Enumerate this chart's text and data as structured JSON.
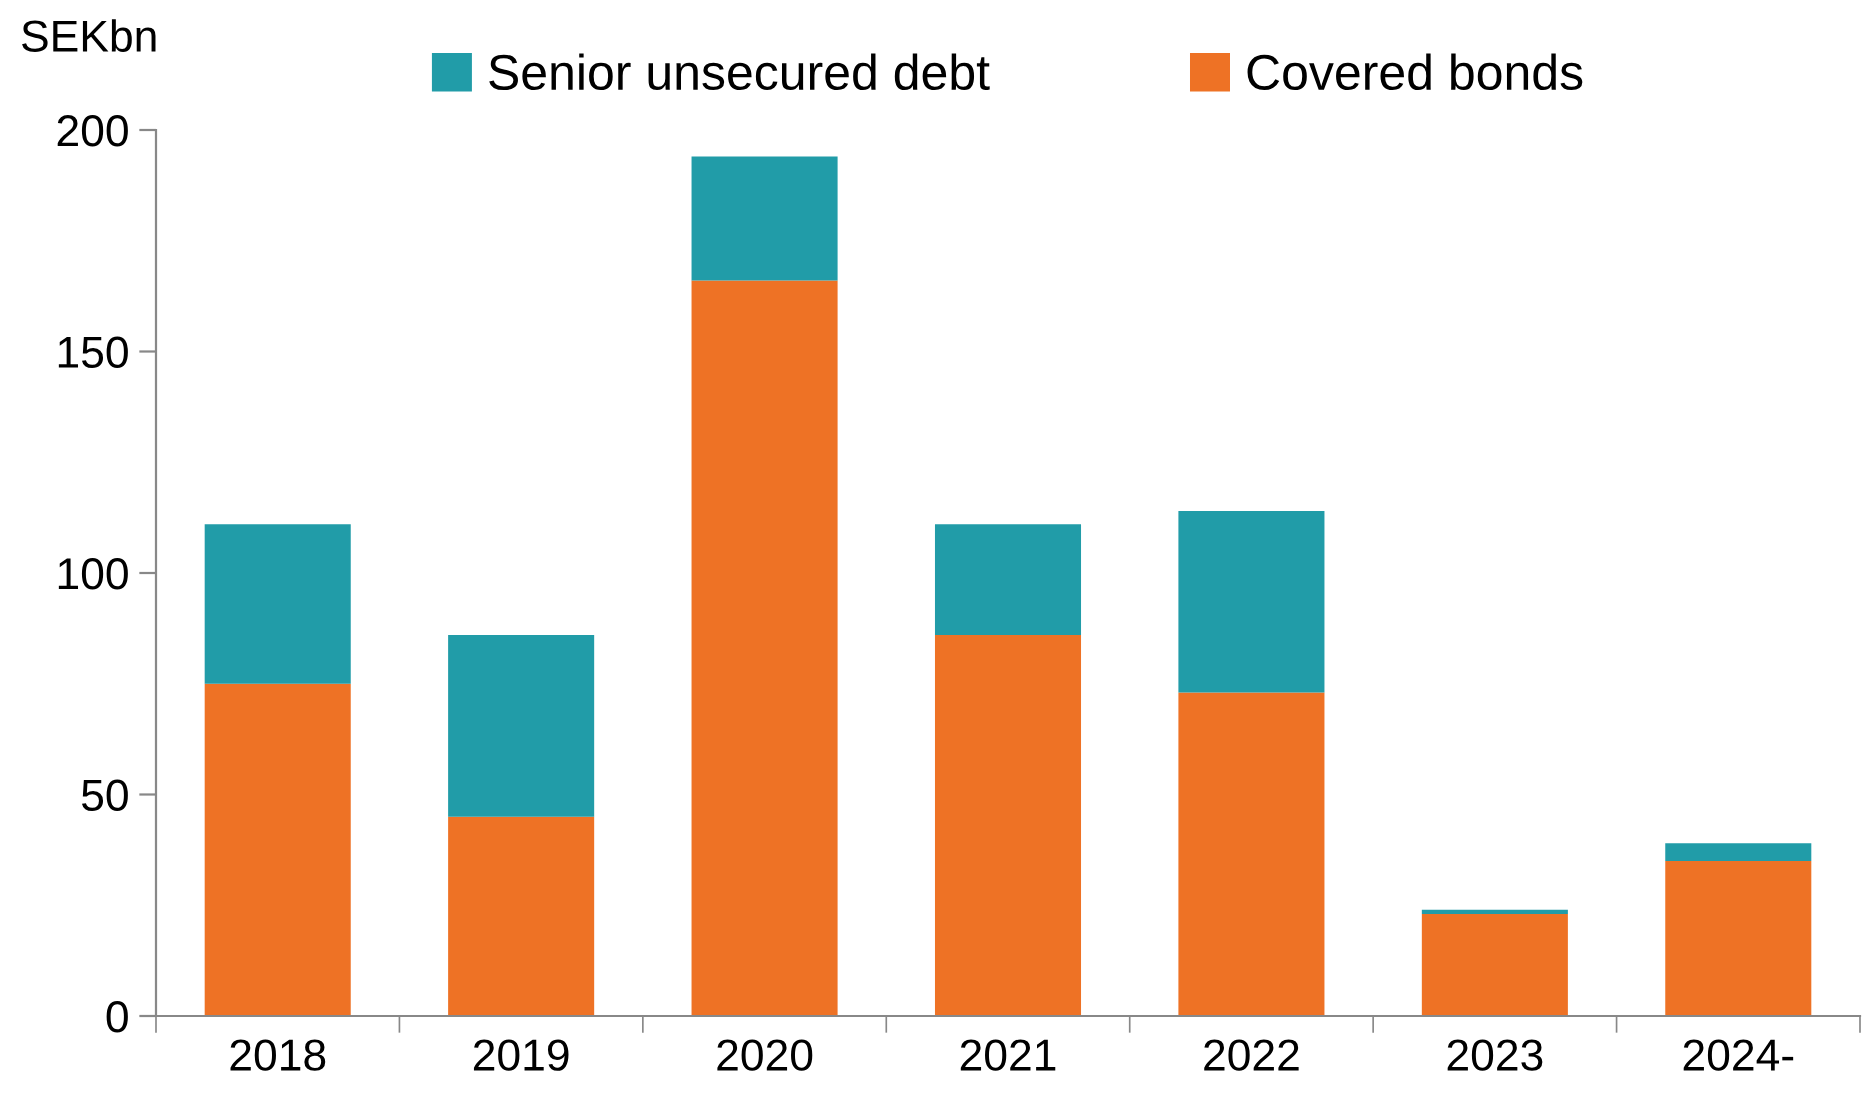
{
  "chart_data": {
    "type": "bar",
    "stacked": true,
    "ylabel": "SEKbn",
    "categories": [
      "2018",
      "2019",
      "2020",
      "2021",
      "2022",
      "2023",
      "2024-"
    ],
    "series": [
      {
        "name": "Covered bonds",
        "color": "#ee7225",
        "values": [
          75,
          45,
          166,
          86,
          73,
          23,
          35
        ]
      },
      {
        "name": "Senior unsecured debt",
        "color": "#219ca8",
        "values": [
          36,
          41,
          28,
          25,
          41,
          1,
          4
        ]
      }
    ],
    "ylim": [
      0,
      200
    ],
    "yticks": [
      0,
      50,
      100,
      150,
      200
    ],
    "grid": false,
    "legend": "top"
  }
}
